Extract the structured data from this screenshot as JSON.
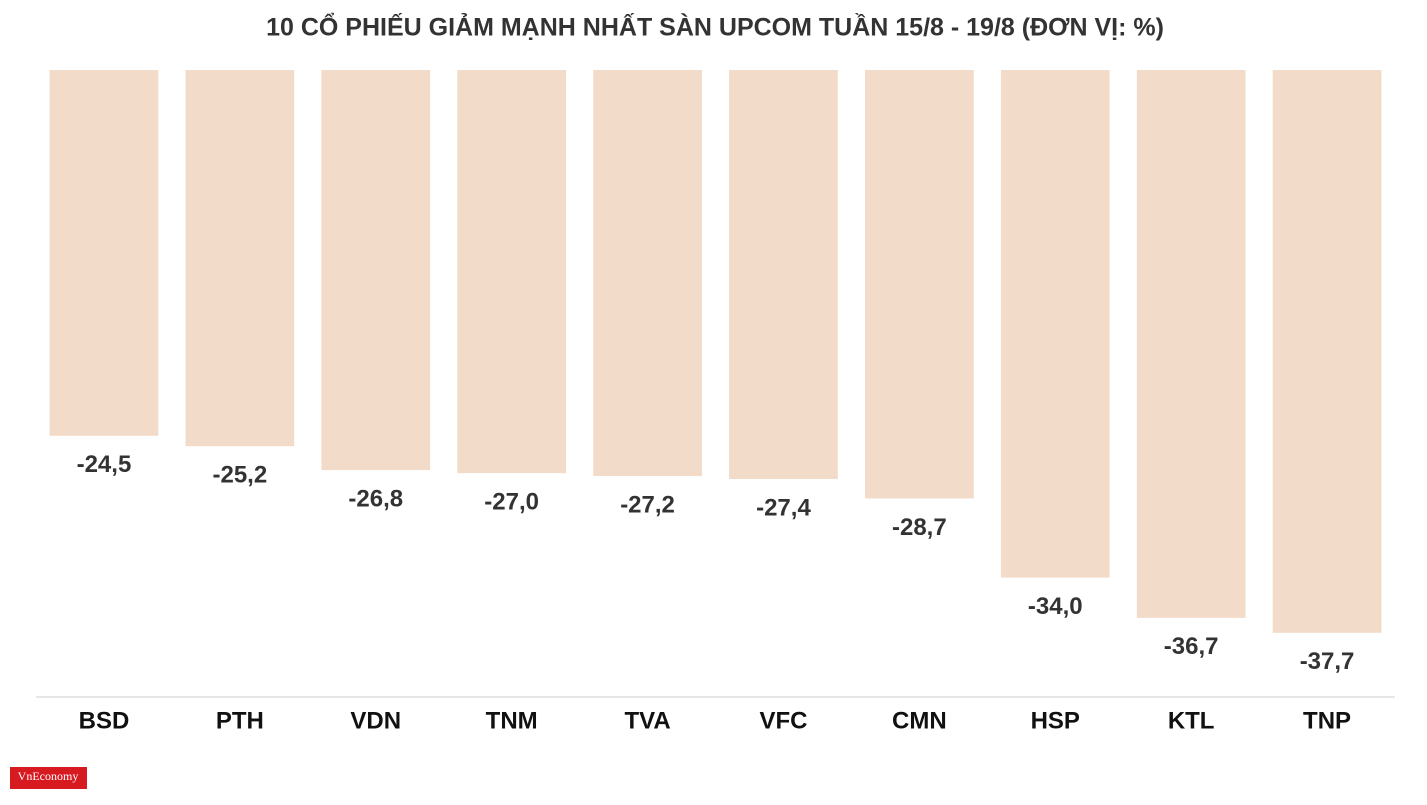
{
  "chart_data": {
    "type": "bar",
    "title": "10 CỔ PHIẾU GIẢM MẠNH NHẤT SÀN UPCOM TUẦN 15/8 - 19/8 (ĐƠN VỊ: %)",
    "categories": [
      "BSD",
      "PTH",
      "VDN",
      "TNM",
      "TVA",
      "VFC",
      "CMN",
      "HSP",
      "KTL",
      "TNP"
    ],
    "values": [
      -24.5,
      -25.2,
      -26.8,
      -27.0,
      -27.2,
      -27.4,
      -28.7,
      -34.0,
      -36.7,
      -37.7
    ],
    "value_labels": [
      "-24,5",
      "-25,2",
      "-26,8",
      "-27,0",
      "-27,2",
      "-27,4",
      "-28,7",
      "-34,0",
      "-36,7",
      "-37,7"
    ],
    "color": "#f2dbc9",
    "ylim": [
      -42,
      0
    ],
    "grid": false
  },
  "logo": "VnEconomy"
}
